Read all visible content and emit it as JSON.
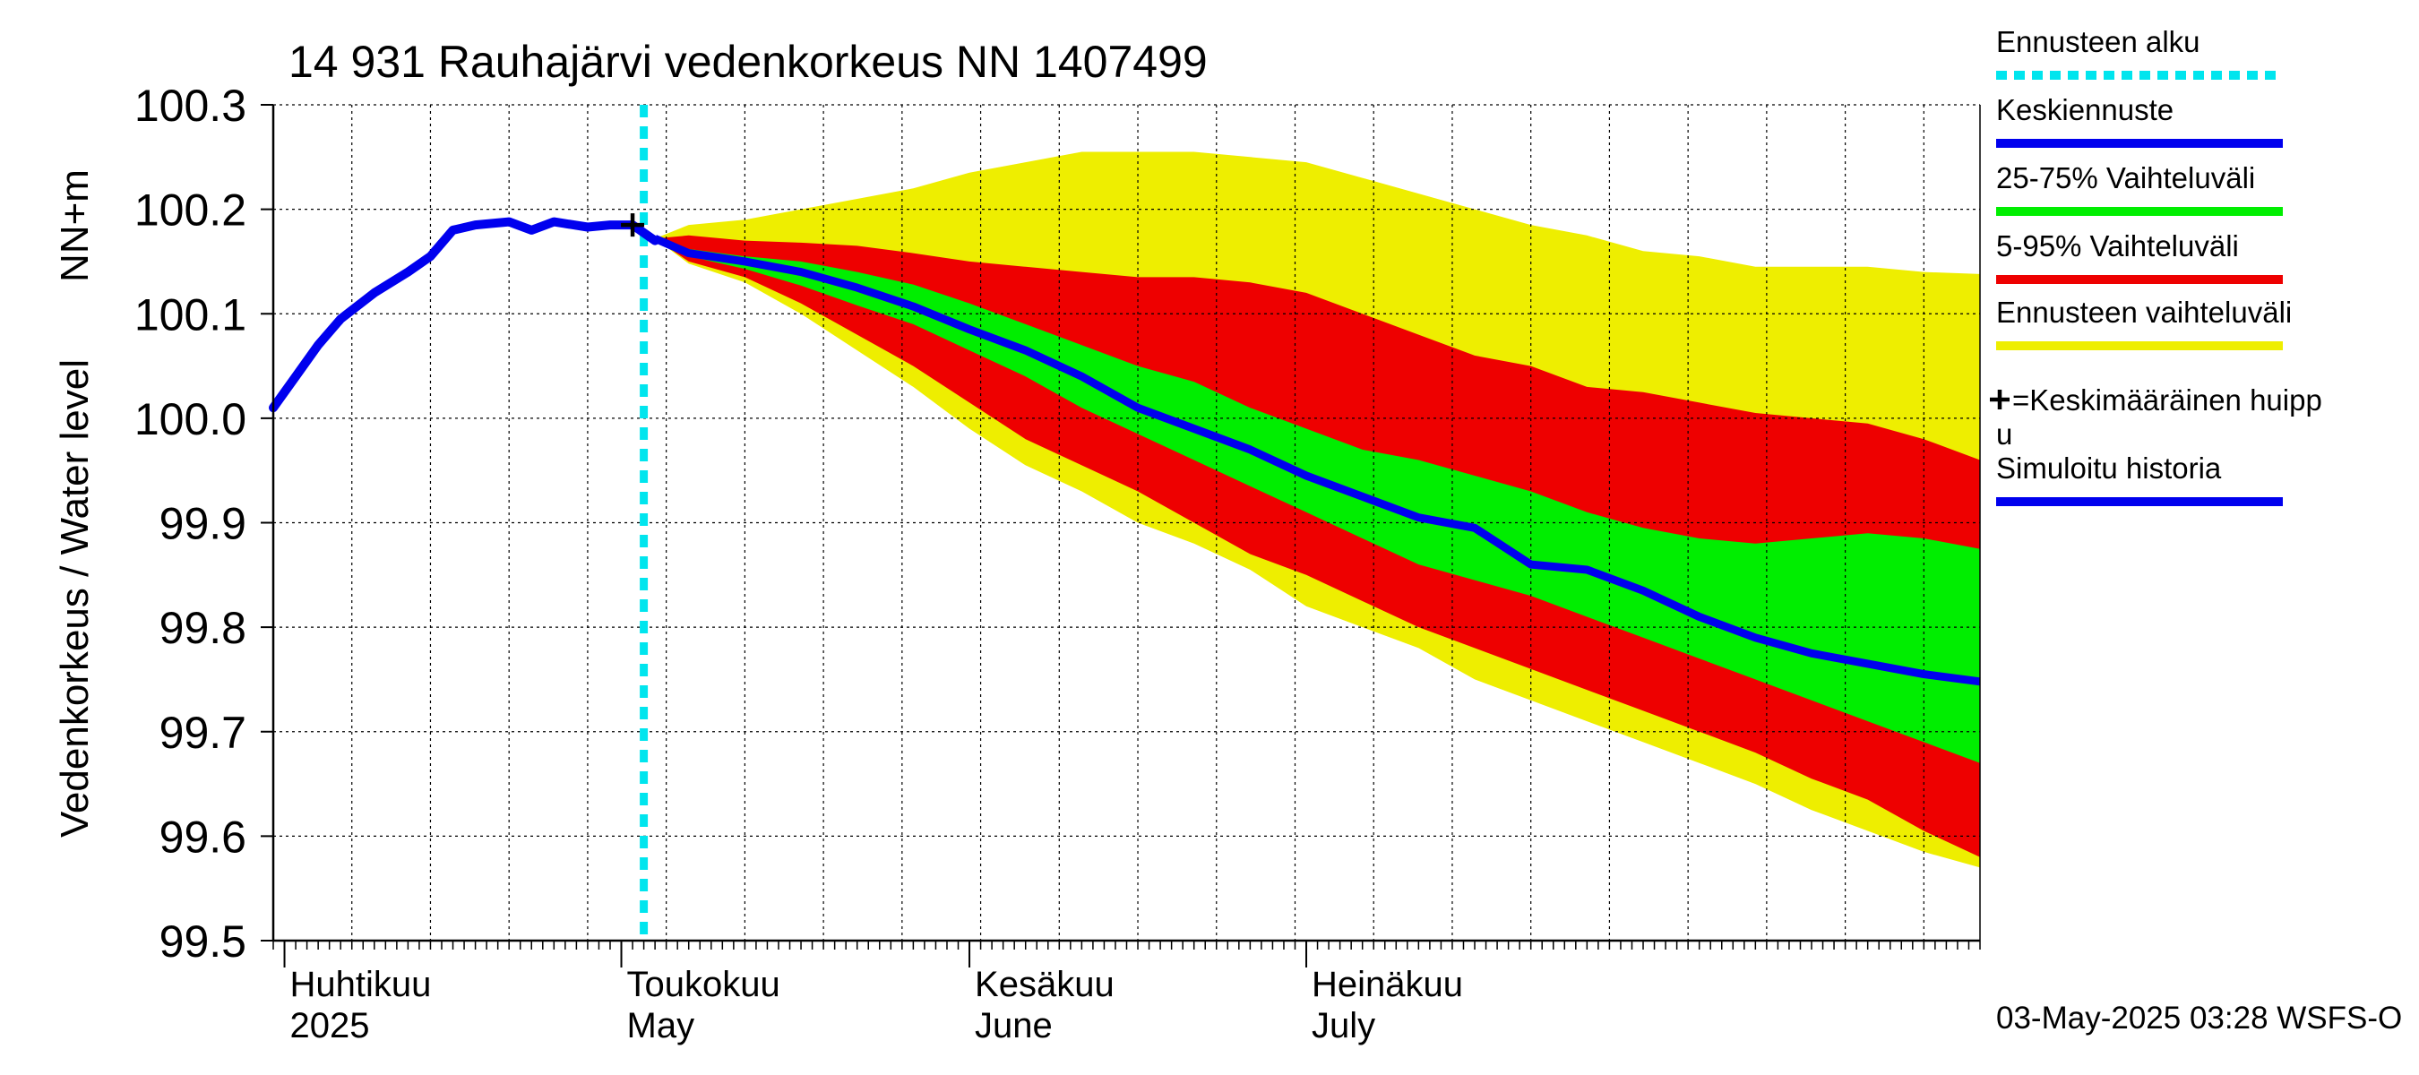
{
  "chart_data": {
    "type": "area",
    "title": "14 931 Rauhajärvi vedenkorkeus NN 1407499",
    "ylabel_main": "Vedenkorkeus / Water level",
    "ylabel_unit": "NN+m",
    "ylim": [
      99.5,
      100.3
    ],
    "y_ticks": [
      "100.3",
      "100.2",
      "100.1",
      "100.0",
      "99.9",
      "99.8",
      "99.7",
      "99.6",
      "99.5"
    ],
    "x_range_days": [
      -1,
      151
    ],
    "month_labels": [
      {
        "day": 0,
        "fi": "Huhtikuu",
        "en": "2025"
      },
      {
        "day": 30,
        "fi": "Toukokuu",
        "en": "May"
      },
      {
        "day": 61,
        "fi": "Kesäkuu",
        "en": "June"
      },
      {
        "day": 91,
        "fi": "Heinäkuu",
        "en": "July"
      }
    ],
    "forecast_start_day": 32,
    "mean_peak": {
      "day": 31,
      "value": 100.185
    },
    "timestamp": "03-May-2025 03:28 WSFS-O",
    "colors": {
      "forecast_start": "#00e5ee",
      "median": "#0000ee",
      "p25_75": "#00ee00",
      "p5_95": "#ee0000",
      "range": "#eeee00",
      "history": "#0000ee",
      "grid": "#000000"
    },
    "history": {
      "days": [
        -1,
        1,
        3,
        5,
        8,
        11,
        13,
        15,
        17,
        20,
        22,
        24,
        27,
        29,
        31,
        33
      ],
      "values": [
        100.01,
        100.04,
        100.07,
        100.095,
        100.12,
        100.14,
        100.155,
        100.18,
        100.185,
        100.188,
        100.18,
        100.188,
        100.183,
        100.185,
        100.185,
        100.17
      ]
    },
    "forecast": {
      "days": [
        33,
        36,
        41,
        46,
        51,
        56,
        61,
        66,
        71,
        76,
        81,
        86,
        91,
        96,
        101,
        106,
        111,
        116,
        121,
        126,
        131,
        136,
        141,
        146,
        151
      ],
      "median": [
        100.172,
        100.158,
        100.15,
        100.14,
        100.125,
        100.107,
        100.085,
        100.065,
        100.04,
        100.01,
        99.99,
        99.97,
        99.945,
        99.925,
        99.905,
        99.895,
        99.86,
        99.855,
        99.835,
        99.81,
        99.79,
        99.775,
        99.765,
        99.755,
        99.748
      ],
      "p25": [
        100.172,
        100.155,
        100.143,
        100.127,
        100.108,
        100.09,
        100.065,
        100.04,
        100.01,
        99.985,
        99.96,
        99.935,
        99.91,
        99.885,
        99.86,
        99.845,
        99.83,
        99.81,
        99.79,
        99.77,
        99.75,
        99.73,
        99.71,
        99.69,
        99.67
      ],
      "p75": [
        100.172,
        100.162,
        100.155,
        100.15,
        100.14,
        100.128,
        100.11,
        100.09,
        100.07,
        100.05,
        100.035,
        100.01,
        99.99,
        99.97,
        99.96,
        99.945,
        99.93,
        99.91,
        99.895,
        99.885,
        99.88,
        99.885,
        99.89,
        99.885,
        99.875
      ],
      "p5": [
        100.172,
        100.15,
        100.135,
        100.11,
        100.08,
        100.05,
        100.015,
        99.98,
        99.955,
        99.93,
        99.9,
        99.87,
        99.85,
        99.825,
        99.8,
        99.78,
        99.76,
        99.74,
        99.72,
        99.7,
        99.68,
        99.655,
        99.635,
        99.605,
        99.58
      ],
      "p95": [
        100.172,
        100.175,
        100.17,
        100.168,
        100.165,
        100.158,
        100.15,
        100.145,
        100.14,
        100.135,
        100.135,
        100.13,
        100.12,
        100.1,
        100.08,
        100.06,
        100.05,
        100.03,
        100.025,
        100.015,
        100.005,
        100.0,
        99.995,
        99.98,
        99.96
      ],
      "min": [
        100.172,
        100.148,
        100.13,
        100.1,
        100.065,
        100.03,
        99.99,
        99.955,
        99.93,
        99.9,
        99.88,
        99.855,
        99.82,
        99.8,
        99.78,
        99.75,
        99.73,
        99.71,
        99.69,
        99.67,
        99.65,
        99.625,
        99.605,
        99.585,
        99.57
      ],
      "max": [
        100.172,
        100.185,
        100.19,
        100.2,
        100.21,
        100.22,
        100.235,
        100.245,
        100.255,
        100.255,
        100.255,
        100.25,
        100.245,
        100.23,
        100.215,
        100.2,
        100.185,
        100.175,
        100.16,
        100.155,
        100.145,
        100.145,
        100.145,
        100.14,
        100.138
      ]
    }
  },
  "legend": {
    "items": [
      {
        "label": "Ennusteen alku",
        "color": "#00e5ee",
        "style": "dotted"
      },
      {
        "label": "Keskiennuste",
        "color": "#0000ee",
        "style": "solid"
      },
      {
        "label": "25-75% Vaihteluväli",
        "color": "#00ee00",
        "style": "solid"
      },
      {
        "label": "5-95% Vaihteluväli",
        "color": "#ee0000",
        "style": "solid"
      },
      {
        "label": "Ennusteen vaihteluväli",
        "color": "#eeee00",
        "style": "solid"
      },
      {
        "label": "=Keskimääräinen huipp",
        "label2": "u",
        "color": "#000000",
        "style": "plus"
      },
      {
        "label": "Simuloitu historia",
        "color": "#0000ee",
        "style": "solid"
      }
    ]
  }
}
